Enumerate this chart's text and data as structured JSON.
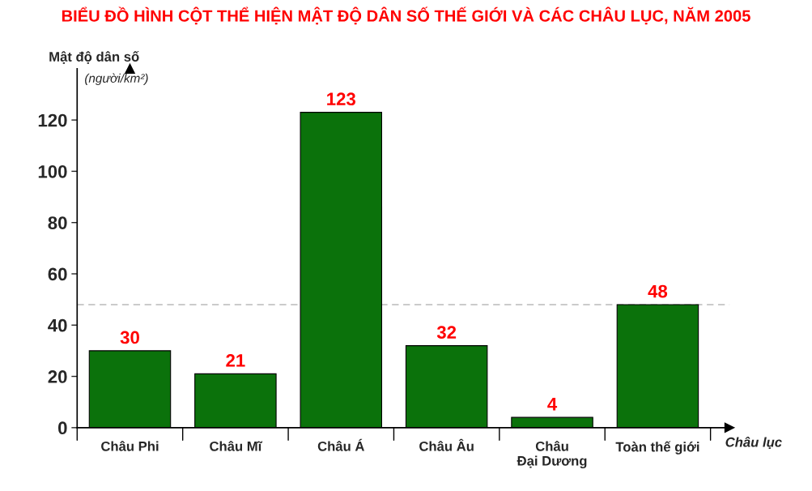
{
  "chart_data": {
    "type": "bar",
    "title": "BIỂU ĐỒ HÌNH CỘT THỂ HIỆN MẬT ĐỘ DÂN SỐ THẾ GIỚI VÀ CÁC CHÂU LỤC, NĂM 2005",
    "ylabel": "Mật độ dân số\n(người/km²)",
    "xlabel": "Châu lục",
    "categories": [
      "Châu Phi",
      "Châu Mĩ",
      "Châu Á",
      "Châu Âu",
      "Châu\nĐại Dương",
      "Toàn thế giới"
    ],
    "values": [
      30,
      21,
      123,
      32,
      4,
      48
    ],
    "color": "#0b720b",
    "ylim": [
      0,
      140
    ],
    "yticks": [
      0,
      20,
      40,
      60,
      80,
      100,
      120
    ],
    "ref_lines": [
      {
        "axis": "y",
        "value": 48,
        "color": "#bbbbbb",
        "line_style": "dashed"
      }
    ],
    "data_labels": true,
    "grid": false,
    "legend": false
  }
}
